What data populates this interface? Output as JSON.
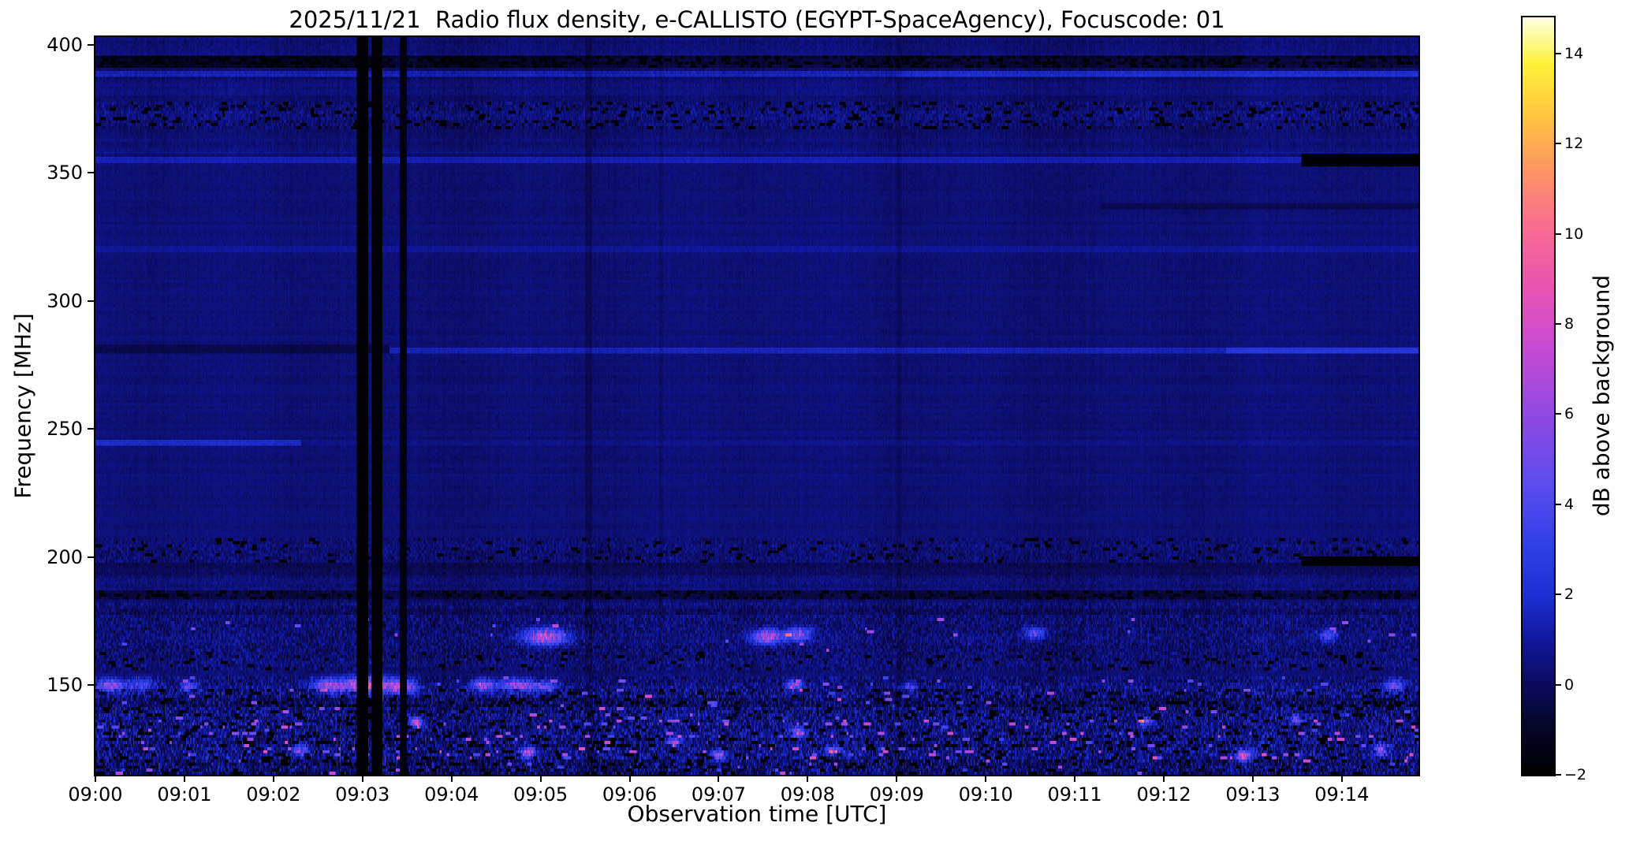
{
  "chart_data": {
    "type": "heatmap",
    "title": "2025/11/21  Radio flux density, e-CALLISTO (EGYPT-SpaceAgency), Focuscode: 01",
    "xlabel": "Observation time [UTC]",
    "ylabel": "Frequency [MHz]",
    "colorbar_label": "dB above background",
    "date": "2025/11/21",
    "instrument": "e-CALLISTO (EGYPT-SpaceAgency)",
    "focuscode": "01",
    "x_start_utc": "09:00",
    "x_range_minutes": [
      0,
      14.86
    ],
    "x_ticks": [
      "09:00",
      "09:01",
      "09:02",
      "09:03",
      "09:04",
      "09:05",
      "09:06",
      "09:07",
      "09:08",
      "09:09",
      "09:10",
      "09:11",
      "09:12",
      "09:13",
      "09:14"
    ],
    "y_range_mhz": [
      115,
      403
    ],
    "y_ticks": [
      400,
      350,
      300,
      250,
      200,
      150
    ],
    "colorbar_range": [
      -2,
      14.8
    ],
    "colorbar_ticks": [
      14,
      12,
      10,
      8,
      6,
      4,
      2,
      0,
      -2
    ],
    "legend": "none",
    "grid": false,
    "colormap_stops": [
      [
        0.0,
        0,
        0,
        0
      ],
      [
        0.07,
        6,
        6,
        46
      ],
      [
        0.12,
        11,
        11,
        94
      ],
      [
        0.18,
        18,
        24,
        160
      ],
      [
        0.235,
        30,
        47,
        210
      ],
      [
        0.3,
        47,
        63,
        230
      ],
      [
        0.38,
        90,
        75,
        238
      ],
      [
        0.47,
        140,
        74,
        226
      ],
      [
        0.565,
        200,
        74,
        210
      ],
      [
        0.65,
        235,
        85,
        175
      ],
      [
        0.72,
        248,
        107,
        148
      ],
      [
        0.8,
        252,
        150,
        100
      ],
      [
        0.875,
        254,
        200,
        62
      ],
      [
        0.94,
        254,
        242,
        60
      ],
      [
        1.0,
        255,
        255,
        224
      ]
    ],
    "noise_model": {
      "seed": 1337,
      "base_high": 0.35,
      "base_mid": 0.35,
      "base_low": 0.32,
      "base_bottom": 0.5,
      "amp_high": 0.38,
      "amp_mid": 0.26,
      "amp_low": 0.55,
      "amp_bottom": 1.0,
      "bottom_amp_slope": 0.015
    },
    "bands": [
      {
        "f": [
          391,
          396.5
        ],
        "t": [
          0,
          14.86
        ],
        "mode": "add",
        "value": -1.1
      },
      {
        "f": [
          391,
          396.5
        ],
        "t": [
          0.1,
          3.3
        ],
        "mode": "add",
        "value": -0.5
      },
      {
        "f": [
          391,
          396.5
        ],
        "t": [
          3.75,
          5.3
        ],
        "mode": "add",
        "value": -0.4
      },
      {
        "f": [
          391,
          396.5
        ],
        "t": [
          0,
          14.86
        ],
        "mode": "darkspeckle",
        "p": 0.3
      },
      {
        "f": [
          388.3,
          390.3
        ],
        "t": [
          0,
          14.86
        ],
        "mode": "add",
        "value": 0.85
      },
      {
        "f": [
          388.3,
          390.3
        ],
        "t": [
          9,
          14.86
        ],
        "mode": "add",
        "value": 0.5
      },
      {
        "f": [
          367,
          378
        ],
        "t": [
          0,
          14.86
        ],
        "mode": "noise",
        "amp": 0.65
      },
      {
        "f": [
          367,
          378
        ],
        "t": [
          0,
          14.86
        ],
        "mode": "darkspeckle",
        "p": 0.1
      },
      {
        "f": [
          354,
          356.5
        ],
        "t": [
          0,
          14.86
        ],
        "mode": "add",
        "value": 1.05
      },
      {
        "f": [
          353,
          357.5
        ],
        "t": [
          13.55,
          14.86
        ],
        "mode": "set",
        "value": -1.95
      },
      {
        "f": [
          319,
          321.2
        ],
        "t": [
          0,
          14.86
        ],
        "mode": "add",
        "value": 0.55
      },
      {
        "f": [
          336,
          339
        ],
        "t": [
          11.3,
          14.86
        ],
        "mode": "add",
        "value": -0.5
      },
      {
        "f": [
          279.5,
          282.5
        ],
        "t": [
          0,
          3.3
        ],
        "mode": "add",
        "value": -0.7
      },
      {
        "f": [
          279.5,
          282
        ],
        "t": [
          3.3,
          12.7
        ],
        "mode": "add",
        "value": 1.15
      },
      {
        "f": [
          279.5,
          282
        ],
        "t": [
          12.7,
          14.86
        ],
        "mode": "add",
        "value": 2.0
      },
      {
        "f": [
          243.5,
          245.8
        ],
        "t": [
          0,
          2.3
        ],
        "mode": "add",
        "value": 1.4
      },
      {
        "f": [
          243.5,
          245.8
        ],
        "t": [
          2.3,
          14.86
        ],
        "mode": "add",
        "value": 0.3
      },
      {
        "f": [
          198,
          207
        ],
        "t": [
          0,
          14.86
        ],
        "mode": "noise",
        "amp": 0.55
      },
      {
        "f": [
          198,
          207
        ],
        "t": [
          0,
          14.86
        ],
        "mode": "darkspeckle",
        "p": 0.06
      },
      {
        "f": [
          193,
          197
        ],
        "t": [
          0,
          14.86
        ],
        "mode": "add",
        "value": -0.45
      },
      {
        "f": [
          196,
          199.5
        ],
        "t": [
          13.55,
          14.86
        ],
        "mode": "set",
        "value": -1.9
      },
      {
        "f": [
          182.5,
          187
        ],
        "t": [
          0,
          14.86
        ],
        "mode": "add",
        "value": -0.85
      },
      {
        "f": [
          182.5,
          187
        ],
        "t": [
          0,
          14.86
        ],
        "mode": "darkspeckle",
        "p": 0.22
      },
      {
        "f": [
          176.5,
          179
        ],
        "t": [
          0,
          14.86
        ],
        "mode": "add",
        "value": -0.45
      },
      {
        "f": [
          176,
          182
        ],
        "t": [
          0,
          14.86
        ],
        "mode": "noise",
        "amp": 0.7
      },
      {
        "f": [
          163,
          176
        ],
        "t": [
          0,
          14.86
        ],
        "mode": "noise",
        "amp": 0.85
      },
      {
        "f": [
          163,
          176
        ],
        "t": [
          0,
          14.86
        ],
        "mode": "brightspeckle",
        "p": 0.005,
        "value": 4,
        "spread": 3
      },
      {
        "f": [
          155,
          163
        ],
        "t": [
          0,
          14.86
        ],
        "mode": "noise",
        "amp": 0.75
      },
      {
        "f": [
          155,
          163
        ],
        "t": [
          0,
          14.86
        ],
        "mode": "darkspeckle",
        "p": 0.05
      },
      {
        "f": [
          147.5,
          152.5
        ],
        "t": [
          0,
          14.86
        ],
        "mode": "noise",
        "amp": 0.95
      },
      {
        "f": [
          147.5,
          152.5
        ],
        "t": [
          0,
          14.86
        ],
        "mode": "brightspeckle",
        "p": 0.015,
        "value": 3.5,
        "spread": 3
      },
      {
        "f": [
          115,
          148
        ],
        "t": [
          0,
          14.86
        ],
        "mode": "noise",
        "amp": 1.25
      },
      {
        "f": [
          115,
          148
        ],
        "t": [
          0,
          14.86
        ],
        "mode": "darkspeckle",
        "p": 0.09
      },
      {
        "f": [
          115,
          148
        ],
        "t": [
          0,
          14.86
        ],
        "mode": "brightspeckle",
        "p": 0.012,
        "value": 3,
        "spread": 5
      },
      {
        "f": [
          141.5,
          144
        ],
        "t": [
          0,
          14.86
        ],
        "mode": "add",
        "value": -0.55
      },
      {
        "f": [
          133,
          136
        ],
        "t": [
          0,
          14.86
        ],
        "mode": "brightspeckle",
        "p": 0.028,
        "value": 4,
        "spread": 4
      },
      {
        "f": [
          128,
          131
        ],
        "t": [
          0,
          14.86
        ],
        "mode": "brightspeckle",
        "p": 0.024,
        "value": 4,
        "spread": 4
      },
      {
        "f": [
          121,
          125
        ],
        "t": [
          0,
          14.86
        ],
        "mode": "brightspeckle",
        "p": 0.024,
        "value": 4,
        "spread": 5
      },
      {
        "f": [
          115,
          120
        ],
        "t": [
          0,
          14.86
        ],
        "mode": "add",
        "value": -0.35
      }
    ],
    "blobs": [
      {
        "t": 5.05,
        "f": 168.5,
        "st": 0.16,
        "sf": 2.2,
        "amp": 8.5
      },
      {
        "t": 7.55,
        "f": 168.5,
        "st": 0.12,
        "sf": 2.0,
        "amp": 7.5
      },
      {
        "t": 7.9,
        "f": 169.5,
        "st": 0.1,
        "sf": 1.8,
        "amp": 6.0
      },
      {
        "t": 10.55,
        "f": 170,
        "st": 0.08,
        "sf": 1.6,
        "amp": 5.0
      },
      {
        "t": 13.85,
        "f": 169,
        "st": 0.07,
        "sf": 1.5,
        "amp": 4.5
      },
      {
        "t": 0.15,
        "f": 149.5,
        "st": 0.1,
        "sf": 1.6,
        "amp": 7
      },
      {
        "t": 0.5,
        "f": 150,
        "st": 0.12,
        "sf": 1.6,
        "amp": 4
      },
      {
        "t": 1.05,
        "f": 149,
        "st": 0.06,
        "sf": 1.4,
        "amp": 5
      },
      {
        "t": 2.6,
        "f": 149.5,
        "st": 0.12,
        "sf": 1.8,
        "amp": 6
      },
      {
        "t": 3.05,
        "f": 149.5,
        "st": 0.22,
        "sf": 2.2,
        "amp": 9
      },
      {
        "t": 3.45,
        "f": 149,
        "st": 0.1,
        "sf": 1.8,
        "amp": 7
      },
      {
        "t": 4.35,
        "f": 149.5,
        "st": 0.1,
        "sf": 1.6,
        "amp": 6
      },
      {
        "t": 4.75,
        "f": 149.5,
        "st": 0.14,
        "sf": 1.6,
        "amp": 6.5
      },
      {
        "t": 5.05,
        "f": 149,
        "st": 0.08,
        "sf": 1.4,
        "amp": 5
      },
      {
        "t": 7.85,
        "f": 149.5,
        "st": 0.06,
        "sf": 1.4,
        "amp": 6
      },
      {
        "t": 9.15,
        "f": 149,
        "st": 0.05,
        "sf": 1.2,
        "amp": 4
      },
      {
        "t": 14.6,
        "f": 149.5,
        "st": 0.08,
        "sf": 1.5,
        "amp": 5
      },
      {
        "t": 2.3,
        "f": 124,
        "st": 0.05,
        "sf": 1.5,
        "amp": 8
      },
      {
        "t": 3.6,
        "f": 135,
        "st": 0.05,
        "sf": 1.2,
        "amp": 9
      },
      {
        "t": 4.85,
        "f": 123,
        "st": 0.06,
        "sf": 1.5,
        "amp": 8
      },
      {
        "t": 6.5,
        "f": 127,
        "st": 0.05,
        "sf": 1.2,
        "amp": 7
      },
      {
        "t": 7.0,
        "f": 122,
        "st": 0.05,
        "sf": 1.5,
        "amp": 7
      },
      {
        "t": 7.9,
        "f": 131,
        "st": 0.06,
        "sf": 1.3,
        "amp": 8
      },
      {
        "t": 8.3,
        "f": 124,
        "st": 0.05,
        "sf": 1.2,
        "amp": 7
      },
      {
        "t": 11.8,
        "f": 135,
        "st": 0.05,
        "sf": 1.2,
        "amp": 6
      },
      {
        "t": 12.9,
        "f": 122,
        "st": 0.06,
        "sf": 1.6,
        "amp": 8
      },
      {
        "t": 13.5,
        "f": 136,
        "st": 0.05,
        "sf": 1.2,
        "amp": 6
      },
      {
        "t": 14.45,
        "f": 124,
        "st": 0.06,
        "sf": 1.5,
        "amp": 7
      }
    ],
    "vlines": [
      {
        "t": [
          2.93,
          3.06
        ],
        "value": -1.85
      },
      {
        "t": [
          3.1,
          3.22
        ],
        "value": -1.85
      },
      {
        "t": [
          3.42,
          3.5
        ],
        "value": -1.6
      }
    ],
    "vshades": [
      {
        "t": [
          5.5,
          5.58
        ],
        "value": -0.45
      },
      {
        "t": [
          6.33,
          6.38
        ],
        "value": -0.3
      },
      {
        "t": [
          9.0,
          9.05
        ],
        "value": -0.25
      }
    ]
  }
}
